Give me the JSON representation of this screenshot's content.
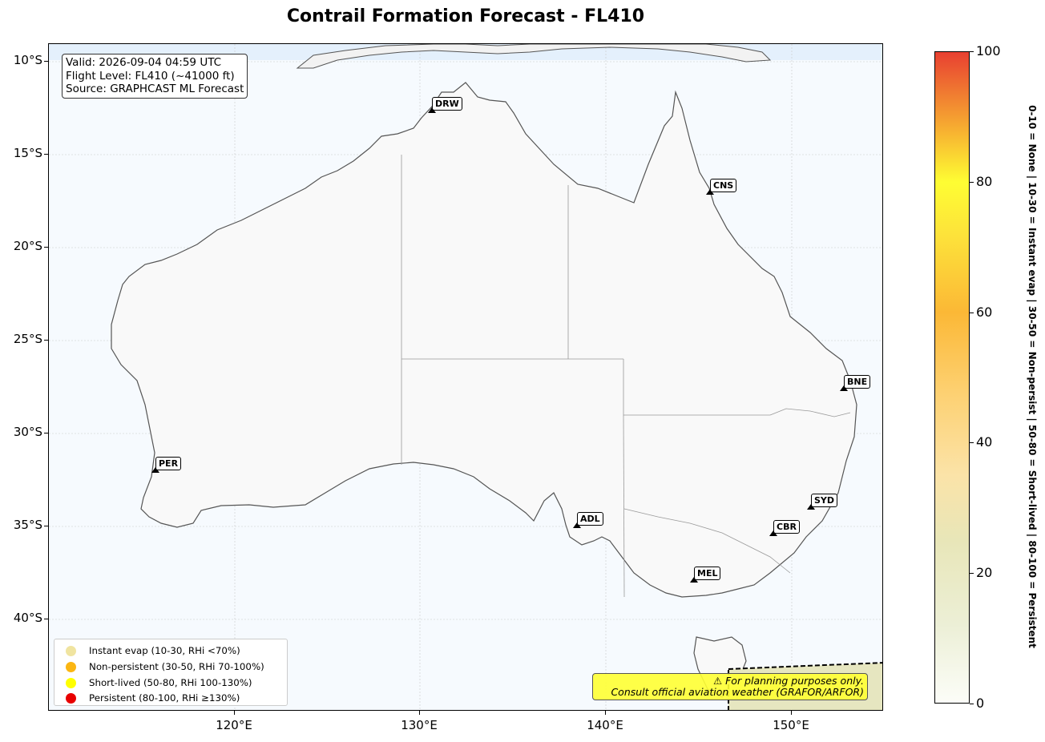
{
  "title": "Contrail Formation Forecast - FL410",
  "info": {
    "valid": "Valid: 2026-09-04 04:59 UTC",
    "flight_level": "Flight Level: FL410 (~41000 ft)",
    "source": "Source: GRAPHCAST ML Forecast"
  },
  "axes": {
    "lat_ticks": [
      "10°S",
      "15°S",
      "20°S",
      "25°S",
      "30°S",
      "35°S",
      "40°S"
    ],
    "lon_ticks": [
      "120°E",
      "130°E",
      "140°E",
      "150°E"
    ]
  },
  "cities": [
    {
      "code": "DRW"
    },
    {
      "code": "CNS"
    },
    {
      "code": "BNE"
    },
    {
      "code": "PER"
    },
    {
      "code": "SYD"
    },
    {
      "code": "ADL"
    },
    {
      "code": "CBR"
    },
    {
      "code": "MEL"
    }
  ],
  "legend": {
    "items": [
      {
        "label": "Instant evap (10-30, RHi <70%)",
        "color": "#f0e4a0"
      },
      {
        "label": "Non-persistent (30-50, RHi 70-100%)",
        "color": "#fbb612"
      },
      {
        "label": "Short-lived (50-80, RHi 100-130%)",
        "color": "#ffff00"
      },
      {
        "label": "Persistent (80-100, RHi ≥130%)",
        "color": "#e80000"
      }
    ]
  },
  "warning": {
    "line1": "⚠ For planning purposes only.",
    "line2": "Consult official aviation weather (GRAFOR/ARFOR)"
  },
  "colorbar": {
    "ticks": [
      "0",
      "20",
      "40",
      "60",
      "80",
      "100"
    ],
    "caption": "0-10 = None  |  10-30 = Instant evap  |  30-50 = Non-persist  |  50-80 = Short-lived  |  80-100 = Persistent"
  }
}
